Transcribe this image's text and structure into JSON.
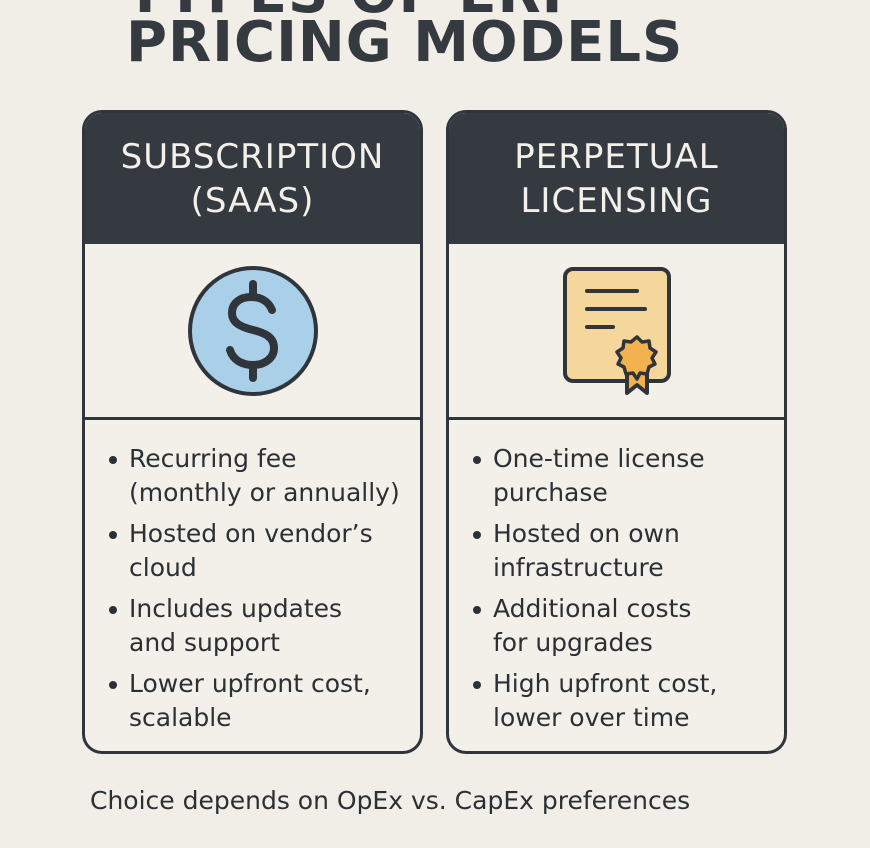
{
  "title_partial": "TYPES OF ERP",
  "title": "PRICING MODELS",
  "cards": [
    {
      "header_lines": [
        "SUBSCRIPTION",
        "(SAAS)"
      ],
      "icon": "dollar-coin-icon",
      "bullets": [
        {
          "lines": [
            "Recurring fee",
            "(monthly or annually)"
          ]
        },
        {
          "lines": [
            "Hosted on vendor’s",
            "cloud"
          ]
        },
        {
          "lines": [
            "Includes updates",
            "and support"
          ]
        },
        {
          "lines": [
            "Lower upfront cost,",
            "scalable"
          ]
        }
      ]
    },
    {
      "header_lines": [
        "PERPETUAL",
        "LICENSING"
      ],
      "icon": "certificate-icon",
      "bullets": [
        {
          "lines": [
            "One-time license",
            "purchase"
          ]
        },
        {
          "lines": [
            "Hosted on own",
            "infrastructure"
          ]
        },
        {
          "lines": [
            "Additional costs",
            "for upgrades"
          ]
        },
        {
          "lines": [
            "High upfront cost,",
            "lower over time"
          ]
        }
      ]
    }
  ],
  "footer": "Choice depends on OpEx vs. CapEx preferences",
  "colors": {
    "background": "#f1ede7",
    "header": "#343a40",
    "coin": "#a9cfe9",
    "certificate": "#f5d79c",
    "seal": "#f2b24f"
  }
}
